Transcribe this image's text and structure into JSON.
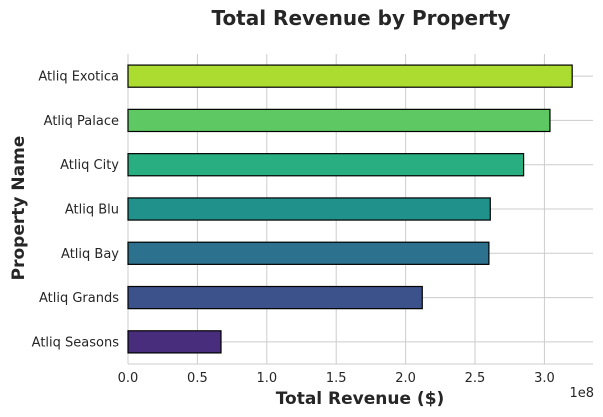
{
  "chart_data": {
    "type": "bar",
    "orientation": "horizontal",
    "title": "Total Revenue by Property",
    "xlabel": "Total Revenue ($)",
    "ylabel": "Property Name",
    "x_scale_note": "1e8",
    "xlim": [
      0,
      3.35
    ],
    "xticks": [
      "0.0",
      "0.5",
      "1.0",
      "1.5",
      "2.0",
      "2.5",
      "3.0"
    ],
    "grid": true,
    "categories": [
      "Atliq Exotica",
      "Atliq Palace",
      "Atliq City",
      "Atliq Blu",
      "Atliq Bay",
      "Atliq Grands",
      "Atliq Seasons"
    ],
    "values": [
      3.2,
      3.04,
      2.85,
      2.61,
      2.6,
      2.12,
      0.67
    ],
    "colors": [
      "#addc30",
      "#5ec962",
      "#28ae80",
      "#21918c",
      "#2c728e",
      "#3b528b",
      "#472d7b"
    ]
  }
}
